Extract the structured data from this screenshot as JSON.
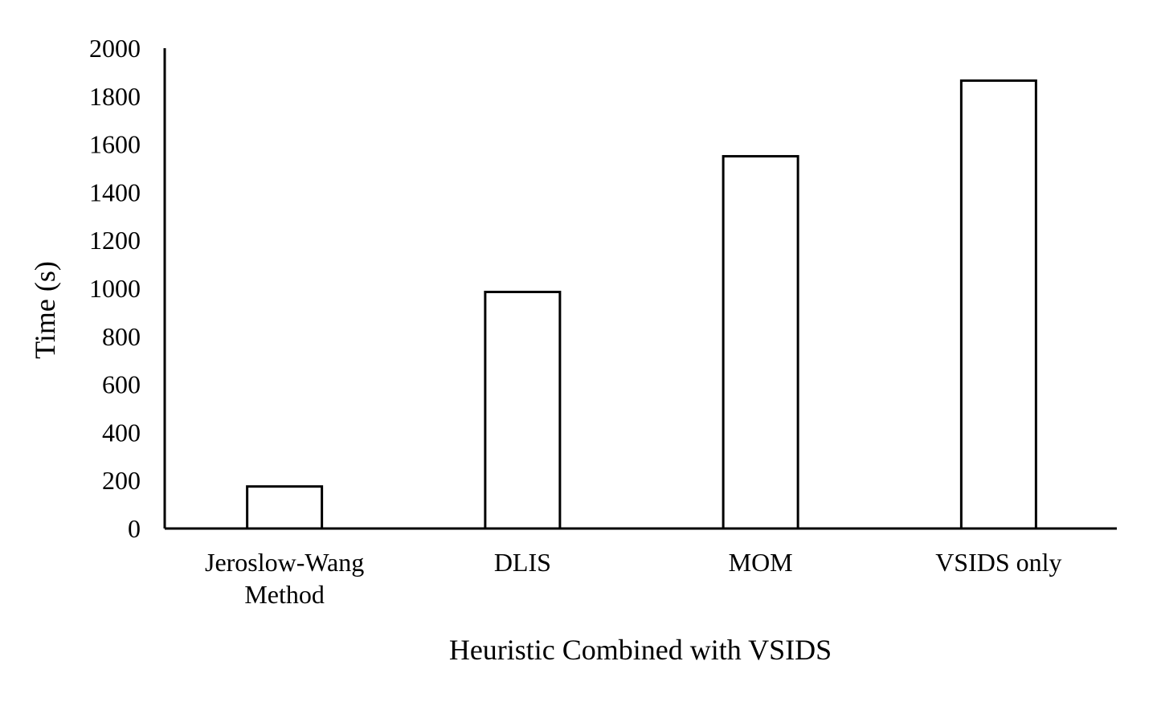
{
  "chart_data": {
    "type": "bar",
    "categories": [
      [
        "Jeroslow-Wang",
        "Method"
      ],
      [
        "DLIS"
      ],
      [
        "MOM"
      ],
      [
        "VSIDS only"
      ]
    ],
    "values": [
      175,
      985,
      1550,
      1865
    ],
    "xlabel": "Heuristic Combined with VSIDS",
    "ylabel": "Time (s)",
    "ylim": [
      0,
      2000
    ],
    "yticks": [
      0,
      200,
      400,
      600,
      800,
      1000,
      1200,
      1400,
      1600,
      1800,
      2000
    ],
    "grid": false,
    "legend": "none",
    "colors": {
      "bar_fill": "#ffffff",
      "bar_stroke": "#000000",
      "axis": "#000000"
    }
  }
}
